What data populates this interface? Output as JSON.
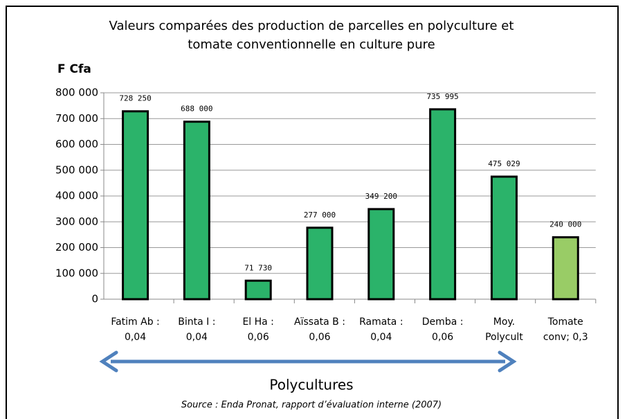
{
  "chart_data": {
    "type": "bar",
    "title": [
      "Valeurs comparées des production de parcelles en polyculture et",
      "tomate conventionnelle en culture pure"
    ],
    "y_label": "F Cfa",
    "categories": [
      [
        "Fatim Ab :",
        "0,04"
      ],
      [
        "Binta I :",
        "0,04"
      ],
      [
        "El Ha :",
        "0,06"
      ],
      [
        "Aïssata B :",
        "0,06"
      ],
      [
        "Ramata :",
        "0,04"
      ],
      [
        "Demba :",
        "0,06"
      ],
      [
        "Moy.",
        "Polycult"
      ],
      [
        "Tomate",
        "conv; 0,3"
      ]
    ],
    "values": [
      728250,
      688000,
      71730,
      277000,
      349200,
      735995,
      475029,
      240000
    ],
    "value_labels": [
      "728 250",
      "688 000",
      "71 730",
      "277 000",
      "349 200",
      "735 995",
      "475 029",
      "240 000"
    ],
    "colors": [
      "#2bb36a",
      "#2bb36a",
      "#2bb36a",
      "#2bb36a",
      "#2bb36a",
      "#2bb36a",
      "#2bb36a",
      "#99cc66"
    ],
    "ylim": [
      0,
      800000
    ],
    "yticks": [
      0,
      {
        "value": 100000,
        "label": "100 000"
      },
      {
        "value": 200000,
        "label": "200 000"
      },
      {
        "value": 300000,
        "label": "300 000"
      },
      {
        "value": 400000,
        "label": "400 000"
      },
      {
        "value": 500000,
        "label": "500 000"
      },
      {
        "value": 600000,
        "label": "600 000"
      },
      {
        "value": 700000,
        "label": "700 000"
      },
      {
        "value": 800000,
        "label": "800 000"
      }
    ],
    "grid": true,
    "annotation": "Polycultures",
    "source": "Source : Enda Pronat, rapport d’évaluation interne (2007)"
  }
}
